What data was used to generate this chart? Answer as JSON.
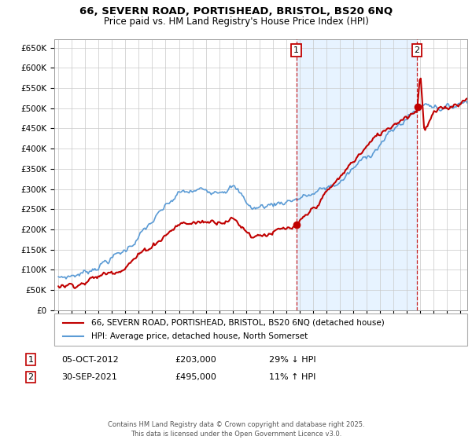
{
  "title_line1": "66, SEVERN ROAD, PORTISHEAD, BRISTOL, BS20 6NQ",
  "title_line2": "Price paid vs. HM Land Registry's House Price Index (HPI)",
  "yticks": [
    0,
    50000,
    100000,
    150000,
    200000,
    250000,
    300000,
    350000,
    400000,
    450000,
    500000,
    550000,
    600000,
    650000
  ],
  "ytick_labels": [
    "£0",
    "£50K",
    "£100K",
    "£150K",
    "£200K",
    "£250K",
    "£300K",
    "£350K",
    "£400K",
    "£450K",
    "£500K",
    "£550K",
    "£600K",
    "£650K"
  ],
  "hpi_color": "#5b9bd5",
  "price_color": "#c00000",
  "sale1_x": 2012.75,
  "sale2_x": 2021.75,
  "sale1_y": 203000,
  "sale2_y": 495000,
  "annotation1": {
    "label": "1",
    "date": "05-OCT-2012",
    "price": "£203,000",
    "hpi_diff": "29% ↓ HPI"
  },
  "annotation2": {
    "label": "2",
    "date": "30-SEP-2021",
    "price": "£495,000",
    "hpi_diff": "11% ↑ HPI"
  },
  "legend_line1": "66, SEVERN ROAD, PORTISHEAD, BRISTOL, BS20 6NQ (detached house)",
  "legend_line2": "HPI: Average price, detached house, North Somerset",
  "footer": "Contains HM Land Registry data © Crown copyright and database right 2025.\nThis data is licensed under the Open Government Licence v3.0.",
  "bg_color": "#ffffff",
  "grid_color": "#c8c8c8",
  "shade_color": "#ddeeff",
  "ylim_top": 670000,
  "xmin": 1995,
  "xmax": 2025
}
